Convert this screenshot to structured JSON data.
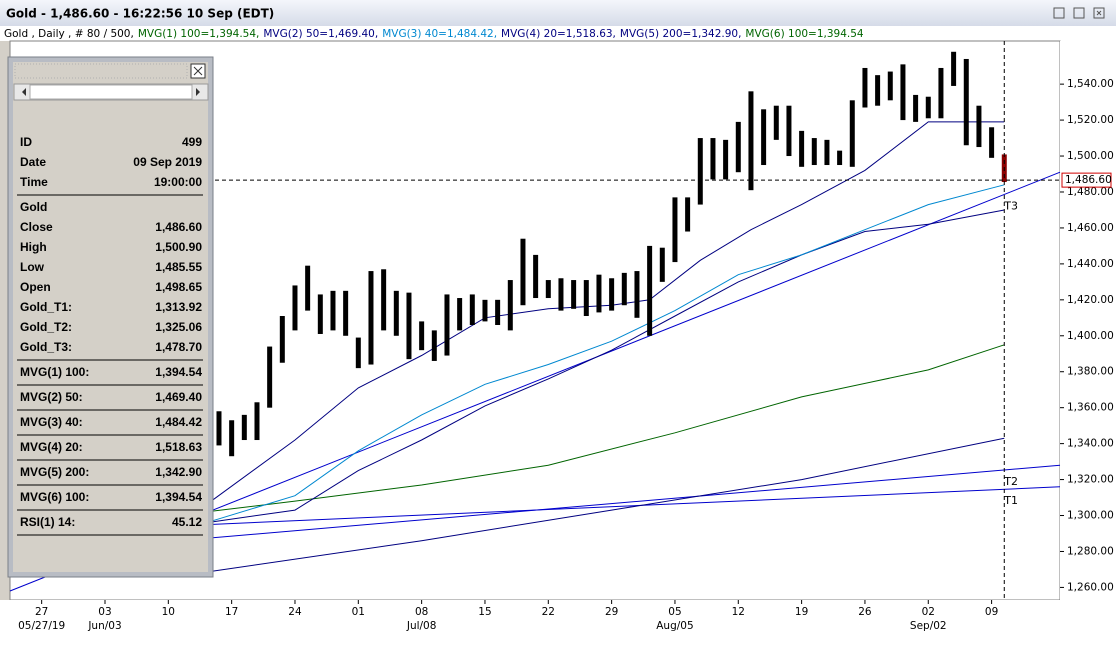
{
  "window": {
    "title": "Gold - 1,486.60 - 16:22:56  10 Sep (EDT)"
  },
  "legend": {
    "prefix": "Gold , Daily , # 80 / 500,",
    "items": [
      {
        "text": "MVG(1) 100=1,394.54,",
        "color": "#006400"
      },
      {
        "text": "MVG(2) 50=1,469.40,",
        "color": "#000080"
      },
      {
        "text": "MVG(3) 40=1,484.42,",
        "color": "#0088d0"
      },
      {
        "text": "MVG(4) 20=1,518.63,",
        "color": "#000080"
      },
      {
        "text": "MVG(5) 200=1,342.90,",
        "color": "#000080"
      },
      {
        "text": "MVG(6) 100=1,394.54",
        "color": "#006400"
      }
    ]
  },
  "panel": {
    "groups": [
      [
        [
          "ID",
          "499"
        ],
        [
          "Date",
          "09 Sep 2019"
        ],
        [
          "Time",
          "19:00:00"
        ]
      ],
      [
        [
          "Gold"
        ],
        [
          "Close",
          "1,486.60"
        ],
        [
          "High",
          "1,500.90"
        ],
        [
          "Low",
          "1,485.55"
        ],
        [
          "Open",
          "1,498.65"
        ],
        [
          "Gold_T1:",
          "1,313.92"
        ],
        [
          "Gold_T2:",
          "1,325.06"
        ],
        [
          "Gold_T3:",
          "1,478.70"
        ]
      ],
      [
        [
          "MVG(1) 100:",
          "1,394.54"
        ]
      ],
      [
        [
          "MVG(2) 50:",
          "1,469.40"
        ]
      ],
      [
        [
          "MVG(3) 40:",
          "1,484.42"
        ]
      ],
      [
        [
          "MVG(4) 20:",
          "1,518.63"
        ]
      ],
      [
        [
          "MVG(5) 200:",
          "1,342.90"
        ]
      ],
      [
        [
          "MVG(6) 100:",
          "1,394.54"
        ]
      ],
      [
        [
          "RSI(1) 14:",
          "45.12"
        ]
      ]
    ]
  },
  "chart_data": {
    "type": "ohlc",
    "bars": {
      "color": "#000000",
      "last_color": "#8b0000",
      "x": [
        14,
        15,
        16,
        17,
        18,
        19,
        20,
        21,
        22,
        23,
        24,
        25,
        26,
        27,
        28,
        29,
        30,
        31,
        32,
        33,
        34,
        35,
        36,
        37,
        38,
        39,
        40,
        41,
        42,
        43,
        44,
        45,
        46,
        47,
        48,
        49,
        50,
        51,
        52,
        53,
        54,
        55,
        56,
        57,
        58,
        59,
        60,
        61,
        62,
        63,
        64,
        65,
        66,
        67,
        68,
        69,
        70,
        71,
        72,
        73,
        74,
        75,
        76
      ],
      "high": [
        1358,
        1353,
        1356,
        1363,
        1394,
        1411,
        1428,
        1439,
        1423,
        1425,
        1425,
        1399,
        1436,
        1437,
        1425,
        1424,
        1408,
        1403,
        1423,
        1421,
        1423,
        1420,
        1420,
        1431,
        1454,
        1445,
        1431,
        1432,
        1431,
        1431,
        1434,
        1432,
        1435,
        1436,
        1450,
        1449,
        1477,
        1477,
        1510,
        1510,
        1509,
        1519,
        1536,
        1526,
        1528,
        1528,
        1514,
        1510,
        1509,
        1503,
        1531,
        1549,
        1545,
        1547,
        1551,
        1534,
        1533,
        1549,
        1558,
        1554,
        1528,
        1516,
        1500.9
      ],
      "low": [
        1339,
        1333,
        1342,
        1342,
        1360,
        1385,
        1403,
        1414,
        1401,
        1403,
        1400,
        1382,
        1384,
        1403,
        1400,
        1387,
        1392,
        1386,
        1389,
        1403,
        1406,
        1408,
        1406,
        1403,
        1417,
        1421,
        1421,
        1414,
        1415,
        1411,
        1413,
        1414,
        1417,
        1410,
        1400,
        1430,
        1441,
        1458,
        1473,
        1487,
        1487,
        1491,
        1481,
        1495,
        1509,
        1500,
        1494,
        1495,
        1495,
        1495,
        1494,
        1527,
        1528,
        1531,
        1520,
        1519,
        1521,
        1521,
        1539,
        1506,
        1505,
        1499,
        1485.55
      ]
    },
    "series": [
      {
        "color": "#006400",
        "x": [
          13,
          20,
          30,
          40,
          50,
          60,
          70,
          76
        ],
        "values": [
          1302,
          1308,
          1317,
          1328,
          1346,
          1366,
          1381,
          1395
        ]
      },
      {
        "color": "#000080",
        "x": [
          13,
          20,
          25,
          30,
          35,
          40,
          45,
          50,
          55,
          60,
          65,
          70,
          76
        ],
        "values": [
          1296,
          1303,
          1325,
          1342,
          1361,
          1376,
          1392,
          1411,
          1430,
          1445,
          1458,
          1462,
          1470
        ]
      },
      {
        "color": "#0088d0",
        "x": [
          13,
          20,
          25,
          30,
          35,
          40,
          45,
          50,
          55,
          60,
          65,
          70,
          76
        ],
        "values": [
          1296,
          1311,
          1336,
          1356,
          1373,
          1384,
          1397,
          1414,
          1434,
          1445,
          1459,
          1473,
          1484
        ]
      },
      {
        "color": "#000080",
        "x": [
          13,
          20,
          25,
          30,
          35,
          40,
          45,
          48,
          52,
          56,
          60,
          65,
          70,
          76
        ],
        "values": [
          1306,
          1342,
          1371,
          1389,
          1410,
          1415,
          1417,
          1420,
          1442,
          1459,
          1473,
          1492,
          1519,
          1519
        ]
      },
      {
        "color": "#000080",
        "x": [
          12.5,
          30,
          45,
          60,
          76
        ],
        "values": [
          1268,
          1286,
          1303,
          1320,
          1343
        ]
      }
    ],
    "trendlines": [
      {
        "label": "T1",
        "color": "#0000cc",
        "x": [
          13.3,
          80.4
        ],
        "values": [
          1295,
          1316
        ]
      },
      {
        "label": "T2",
        "color": "#0000cc",
        "x": [
          -2.5,
          80.4
        ],
        "values": [
          1278,
          1328
        ]
      },
      {
        "label": "T3",
        "color": "#0000cc",
        "x": [
          -2.5,
          80.4
        ],
        "values": [
          1258,
          1491
        ]
      }
    ],
    "last_price": {
      "value": 1486.6,
      "label": "1,486.60"
    },
    "xlim": [
      -2.5,
      80.4
    ],
    "ylim": [
      1253,
      1564
    ],
    "yticks": [
      {
        "value": 1260,
        "label": "1,260.00"
      },
      {
        "value": 1280,
        "label": "1,280.00"
      },
      {
        "value": 1300,
        "label": "1,300.00"
      },
      {
        "value": 1320,
        "label": "1,320.00"
      },
      {
        "value": 1340,
        "label": "1,340.00"
      },
      {
        "value": 1360,
        "label": "1,360.00"
      },
      {
        "value": 1380,
        "label": "1,380.00"
      },
      {
        "value": 1400,
        "label": "1,400.00"
      },
      {
        "value": 1420,
        "label": "1,420.00"
      },
      {
        "value": 1440,
        "label": "1,440.00"
      },
      {
        "value": 1460,
        "label": "1,460.00"
      },
      {
        "value": 1480,
        "label": "1,480.00"
      },
      {
        "value": 1500,
        "label": "1,500.00"
      },
      {
        "value": 1520,
        "label": "1,520.00"
      },
      {
        "value": 1540,
        "label": "1,540.00"
      }
    ],
    "xticks": [
      {
        "value": 0,
        "label": "27"
      },
      {
        "value": 5,
        "label": "03"
      },
      {
        "value": 10,
        "label": "10"
      },
      {
        "value": 15,
        "label": "17"
      },
      {
        "value": 20,
        "label": "24"
      },
      {
        "value": 25,
        "label": "01"
      },
      {
        "value": 30,
        "label": "08"
      },
      {
        "value": 35,
        "label": "15"
      },
      {
        "value": 40,
        "label": "22"
      },
      {
        "value": 45,
        "label": "29"
      },
      {
        "value": 50,
        "label": "05"
      },
      {
        "value": 55,
        "label": "12"
      },
      {
        "value": 60,
        "label": "19"
      },
      {
        "value": 65,
        "label": "26"
      },
      {
        "value": 70,
        "label": "02"
      },
      {
        "value": 75,
        "label": "09"
      }
    ],
    "xticks_major": [
      {
        "value": 0,
        "label": "05/27/19"
      },
      {
        "value": 5,
        "label": "Jun/03"
      },
      {
        "value": 30,
        "label": "Jul/08"
      },
      {
        "value": 50,
        "label": "Aug/05"
      },
      {
        "value": 70,
        "label": "Sep/02"
      }
    ]
  }
}
